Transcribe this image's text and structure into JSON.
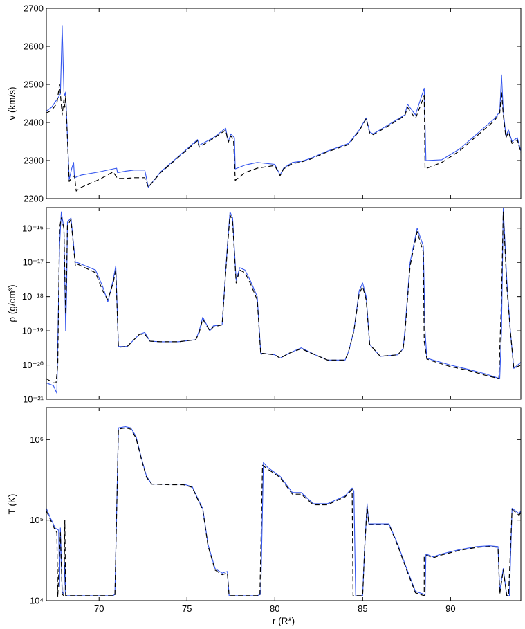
{
  "chart_data": [
    {
      "type": "line",
      "ylabel": "v (km/s)",
      "xlim": [
        67,
        94
      ],
      "ylim": [
        2200,
        2700
      ],
      "yscale": "linear",
      "yticks": [
        2200,
        2300,
        2400,
        2500,
        2600,
        2700
      ],
      "ytick_labels": [
        "2200",
        "2300",
        "2400",
        "2500",
        "2600",
        "2700"
      ],
      "grid": false,
      "series": [
        {
          "style": "solid",
          "color": "#3355ee",
          "x": [
            67,
            67.3,
            67.6,
            67.8,
            67.9,
            68.0,
            68.05,
            68.1,
            68.3,
            68.45,
            68.55,
            68.6,
            69,
            70,
            71,
            71.05,
            71.5,
            72,
            72.6,
            72.8,
            73.5,
            74.5,
            75.6,
            75.7,
            76.5,
            77.2,
            77.35,
            77.5,
            77.7,
            77.75,
            78.3,
            79,
            80,
            80.3,
            80.5,
            81,
            81.5,
            82,
            83,
            84.2,
            84.8,
            85.2,
            85.4,
            85.6,
            86.5,
            87.4,
            87.55,
            88.0,
            88.5,
            88.6,
            89.5,
            90.5,
            91.5,
            92.5,
            92.8,
            92.9,
            93.0,
            93.15,
            93.3,
            93.5,
            93.8,
            94
          ],
          "y": [
            2430,
            2440,
            2460,
            2475,
            2655,
            2480,
            2470,
            2480,
            2250,
            2280,
            2295,
            2255,
            2262,
            2270,
            2280,
            2268,
            2272,
            2275,
            2275,
            2230,
            2270,
            2310,
            2355,
            2340,
            2360,
            2385,
            2350,
            2370,
            2360,
            2278,
            2288,
            2295,
            2290,
            2262,
            2280,
            2295,
            2298,
            2305,
            2325,
            2345,
            2380,
            2412,
            2375,
            2370,
            2395,
            2420,
            2448,
            2420,
            2490,
            2300,
            2302,
            2330,
            2370,
            2410,
            2428,
            2525,
            2430,
            2365,
            2380,
            2350,
            2360,
            2325
          ]
        },
        {
          "style": "dashed",
          "color": "#000000",
          "x": [
            67,
            67.3,
            67.6,
            67.75,
            67.9,
            68.0,
            68.05,
            68.1,
            68.3,
            68.45,
            68.6,
            68.7,
            69,
            70,
            70.8,
            71.05,
            71.5,
            72,
            72.6,
            72.8,
            73.5,
            74.5,
            75.6,
            75.7,
            76.5,
            77.2,
            77.35,
            77.5,
            77.65,
            77.75,
            78.3,
            79,
            80,
            80.3,
            80.5,
            81,
            81.5,
            82,
            83,
            84.2,
            84.8,
            85.2,
            85.4,
            85.6,
            86.5,
            87.4,
            87.55,
            88.0,
            88.5,
            88.55,
            89.5,
            90.5,
            91.5,
            92.5,
            92.8,
            92.9,
            93.0,
            93.15,
            93.3,
            93.5,
            93.8,
            94
          ],
          "y": [
            2425,
            2432,
            2450,
            2500,
            2420,
            2460,
            2440,
            2470,
            2245,
            2255,
            2260,
            2220,
            2230,
            2250,
            2270,
            2253,
            2253,
            2255,
            2255,
            2230,
            2268,
            2308,
            2352,
            2335,
            2358,
            2380,
            2348,
            2365,
            2355,
            2248,
            2268,
            2280,
            2287,
            2260,
            2278,
            2292,
            2296,
            2303,
            2323,
            2342,
            2378,
            2410,
            2372,
            2368,
            2392,
            2418,
            2440,
            2410,
            2470,
            2278,
            2295,
            2325,
            2365,
            2405,
            2425,
            2480,
            2420,
            2360,
            2375,
            2345,
            2355,
            2320
          ]
        }
      ]
    },
    {
      "type": "line",
      "ylabel": "ρ (g/cm³)",
      "xlim": [
        67,
        94
      ],
      "yscale": "log",
      "ylim": [
        1e-21,
        4e-16
      ],
      "yticks": [
        1e-21,
        1e-20,
        1e-19,
        1e-18,
        1e-17,
        1e-16
      ],
      "ytick_labels": [
        "10⁻²¹",
        "10⁻²⁰",
        "10⁻¹⁹",
        "10⁻¹⁸",
        "10⁻¹⁷",
        "10⁻¹⁶"
      ],
      "grid": false,
      "series": [
        {
          "style": "solid",
          "color": "#3355ee",
          "x": [
            67,
            67.4,
            67.6,
            67.75,
            67.85,
            68.0,
            68.1,
            68.15,
            68.2,
            68.4,
            68.65,
            68.75,
            69.2,
            69.8,
            70.2,
            70.5,
            70.8,
            70.95,
            71.1,
            71.6,
            72.3,
            72.6,
            72.9,
            73.5,
            74.5,
            75.5,
            75.7,
            75.9,
            76.3,
            76.5,
            77,
            77.3,
            77.45,
            77.6,
            77.8,
            78.0,
            78.3,
            78.6,
            79,
            79.2,
            79.3,
            80.0,
            80.3,
            80.8,
            81.5,
            82.3,
            83,
            84.0,
            84.2,
            84.5,
            84.8,
            85.0,
            85.2,
            85.4,
            86.0,
            87.0,
            87.3,
            87.4,
            87.7,
            88.1,
            88.45,
            88.55,
            88.65,
            89.0,
            90.0,
            91.0,
            92.0,
            92.8,
            92.9,
            93.0,
            93.2,
            93.4,
            93.6,
            94
          ],
          "y": [
            3e-21,
            2.5e-21,
            1.5e-21,
            3e-17,
            3e-16,
            1e-16,
            1e-19,
            1e-18,
            1.5e-16,
            2e-16,
            1e-17,
            1e-17,
            8e-18,
            6e-18,
            2e-18,
            7e-19,
            3e-18,
            8e-18,
            3.5e-20,
            3.5e-20,
            8e-20,
            9e-20,
            5e-20,
            4.8e-20,
            4.8e-20,
            5.5e-20,
            1e-19,
            2.5e-19,
            1e-19,
            1.4e-19,
            1.5e-19,
            3e-17,
            3e-16,
            2e-16,
            3e-18,
            7e-18,
            6e-18,
            3e-18,
            1e-18,
            2.2e-20,
            2.2e-20,
            2e-20,
            1.6e-20,
            2.2e-20,
            3.2e-20,
            2e-20,
            1.4e-20,
            1.4e-20,
            2.5e-20,
            1e-19,
            1.5e-18,
            2.5e-18,
            1e-18,
            4e-20,
            1.8e-20,
            2e-20,
            3e-20,
            1e-19,
            1e-17,
            1e-16,
            3e-17,
            1e-19,
            1.6e-20,
            1.4e-20,
            1e-20,
            7.5e-21,
            5.5e-21,
            4e-21,
            1e-19,
            4e-16,
            3e-18,
            1e-19,
            8e-21,
            1.2e-20
          ]
        },
        {
          "style": "dashed",
          "color": "#000000",
          "x": [
            67,
            67.4,
            67.55,
            67.65,
            67.75,
            67.85,
            68.0,
            68.1,
            68.15,
            68.2,
            68.4,
            68.65,
            68.75,
            69.2,
            69.8,
            70.2,
            70.5,
            70.8,
            70.95,
            71.1,
            71.6,
            72.3,
            72.6,
            72.9,
            73.5,
            74.5,
            75.5,
            75.7,
            75.9,
            76.3,
            76.5,
            77,
            77.3,
            77.45,
            77.6,
            77.8,
            78.0,
            78.3,
            78.6,
            79,
            79.2,
            79.3,
            80.0,
            80.3,
            80.8,
            81.5,
            82.3,
            83,
            84.0,
            84.2,
            84.5,
            84.8,
            85.0,
            85.2,
            85.4,
            86.0,
            87.0,
            87.3,
            87.4,
            87.7,
            88.1,
            88.45,
            88.5,
            88.65,
            89.0,
            90.0,
            91.0,
            92.0,
            92.75,
            92.9,
            93.0,
            93.2,
            93.4,
            93.6,
            94
          ],
          "y": [
            4e-21,
            3e-21,
            3e-21,
            1e-20,
            1e-16,
            2e-16,
            1e-16,
            3e-19,
            3e-18,
            1.2e-16,
            1.8e-16,
            8e-18,
            9e-18,
            7e-18,
            5e-18,
            1.5e-18,
            8e-19,
            2.5e-18,
            6e-18,
            3.3e-20,
            3.5e-20,
            8e-20,
            8e-20,
            5e-20,
            4.8e-20,
            4.8e-20,
            5.5e-20,
            9e-20,
            2.2e-19,
            1e-19,
            1.3e-19,
            1.5e-19,
            2.5e-17,
            2.5e-16,
            1.5e-16,
            2.5e-18,
            6e-18,
            5e-18,
            2.5e-18,
            8e-19,
            2e-20,
            2.2e-20,
            2e-20,
            1.6e-20,
            2.2e-20,
            3e-20,
            2e-20,
            1.4e-20,
            1.4e-20,
            2.5e-20,
            1e-19,
            1.2e-18,
            2e-18,
            8e-19,
            4e-20,
            1.8e-20,
            2e-20,
            3e-20,
            8e-20,
            8e-18,
            8e-17,
            2e-17,
            5e-20,
            1.5e-20,
            1.3e-20,
            9e-21,
            7e-21,
            5e-21,
            4e-21,
            1e-18,
            3e-16,
            2e-18,
            1e-19,
            8e-21,
            1e-20
          ]
        }
      ]
    },
    {
      "type": "line",
      "ylabel": "T (K)",
      "xlabel": "r (R*)",
      "xlim": [
        67,
        94
      ],
      "xticks": [
        70,
        75,
        80,
        85,
        90
      ],
      "xtick_labels": [
        "70",
        "75",
        "80",
        "85",
        "90"
      ],
      "yscale": "log",
      "ylim": [
        10000,
        2500000
      ],
      "yticks": [
        10000,
        100000,
        1000000
      ],
      "ytick_labels": [
        "10⁴",
        "10⁵",
        "10⁶"
      ],
      "grid": false,
      "series": [
        {
          "style": "solid",
          "color": "#3355ee",
          "x": [
            67,
            67.2,
            67.5,
            67.7,
            67.75,
            67.8,
            67.9,
            68.0,
            68.05,
            68.1,
            68.2,
            68.3,
            69,
            70,
            70.8,
            70.9,
            71.1,
            71.5,
            71.8,
            72.1,
            72.4,
            72.7,
            73,
            74,
            74.8,
            75.3,
            75.7,
            75.9,
            76.2,
            76.6,
            77,
            77.3,
            77.4,
            78,
            79,
            79.2,
            79.35,
            79.6,
            80.3,
            81,
            81.5,
            82.2,
            83,
            84.0,
            84.4,
            84.5,
            84.6,
            85.0,
            85.1,
            85.25,
            85.35,
            85.5,
            86.5,
            87,
            87.5,
            88.0,
            88.5,
            88.55,
            88.6,
            89,
            89.5,
            90.5,
            91.5,
            92.2,
            92.7,
            92.8,
            93.0,
            93.2,
            93.35,
            93.5,
            93.7,
            93.9,
            94
          ],
          "y": [
            140000.0,
            110000.0,
            80000.0,
            75000.0,
            15000.0,
            80000.0,
            13000.0,
            12000.0,
            30000.0,
            11500.0,
            11500.0,
            11500.0,
            11500.0,
            11500.0,
            11500.0,
            12000.0,
            1400000.0,
            1450000.0,
            1400000.0,
            1100000.0,
            600000.0,
            350000.0,
            280000.0,
            280000.0,
            280000.0,
            260000.0,
            170000.0,
            140000.0,
            50000.0,
            25000.0,
            22000.0,
            23000.0,
            11500.0,
            11500.0,
            11500.0,
            12000.0,
            520000.0,
            450000.0,
            350000.0,
            220000.0,
            220000.0,
            160000.0,
            160000.0,
            200000.0,
            250000.0,
            230000.0,
            11500.0,
            11500.0,
            40000.0,
            160000.0,
            90000.0,
            90000.0,
            90000.0,
            50000.0,
            25000.0,
            13000.0,
            12000.0,
            11500.0,
            38000.0,
            35000.0,
            38000.0,
            43000.0,
            47000.0,
            48000.0,
            47000.0,
            13000.0,
            25000.0,
            11500.0,
            11500.0,
            140000.0,
            130000.0,
            120000.0,
            130000.0
          ]
        },
        {
          "style": "dashed",
          "color": "#000000",
          "x": [
            67,
            67.2,
            67.5,
            67.6,
            67.65,
            67.8,
            67.9,
            68.0,
            68.05,
            68.1,
            68.2,
            68.3,
            69,
            70,
            70.8,
            70.9,
            71.1,
            71.5,
            71.8,
            72.1,
            72.4,
            72.7,
            73,
            74,
            74.8,
            75.3,
            75.7,
            75.9,
            76.2,
            76.6,
            77,
            77.3,
            77.4,
            78,
            79,
            79.15,
            79.3,
            79.6,
            80.3,
            81,
            81.5,
            82.2,
            83,
            84.0,
            84.4,
            84.45,
            84.6,
            85.0,
            85.1,
            85.25,
            85.35,
            85.5,
            86.5,
            87,
            87.5,
            88.0,
            88.5,
            88.5,
            88.6,
            89,
            89.5,
            90.5,
            91.5,
            92.2,
            92.7,
            92.8,
            93.0,
            93.2,
            93.3,
            93.5,
            93.7,
            93.9,
            94
          ],
          "y": [
            130000.0,
            105000.0,
            75000.0,
            70000.0,
            11000.0,
            70000.0,
            12000.0,
            11500.0,
            100000.0,
            11500.0,
            11500.0,
            11500.0,
            11500.0,
            11500.0,
            11500.0,
            11500.0,
            1350000.0,
            1400000.0,
            1350000.0,
            1050000.0,
            580000.0,
            340000.0,
            280000.0,
            275000.0,
            275000.0,
            255000.0,
            165000.0,
            135000.0,
            48000.0,
            24000.0,
            21000.0,
            22000.0,
            11500.0,
            11500.0,
            11500.0,
            11500.0,
            480000.0,
            430000.0,
            340000.0,
            210000.0,
            210000.0,
            155000.0,
            155000.0,
            195000.0,
            240000.0,
            11500.0,
            11500.0,
            11500.0,
            40000.0,
            150000.0,
            88000.0,
            88000.0,
            88000.0,
            48000.0,
            24000.0,
            12500.0,
            11500.0,
            35000.0,
            37000.0,
            34000.0,
            37000.0,
            42000.0,
            46000.0,
            47000.0,
            46000.0,
            12000.0,
            24000.0,
            11500.0,
            11500.0,
            135000.0,
            125000.0,
            115000.0,
            125000.0
          ]
        }
      ]
    }
  ]
}
